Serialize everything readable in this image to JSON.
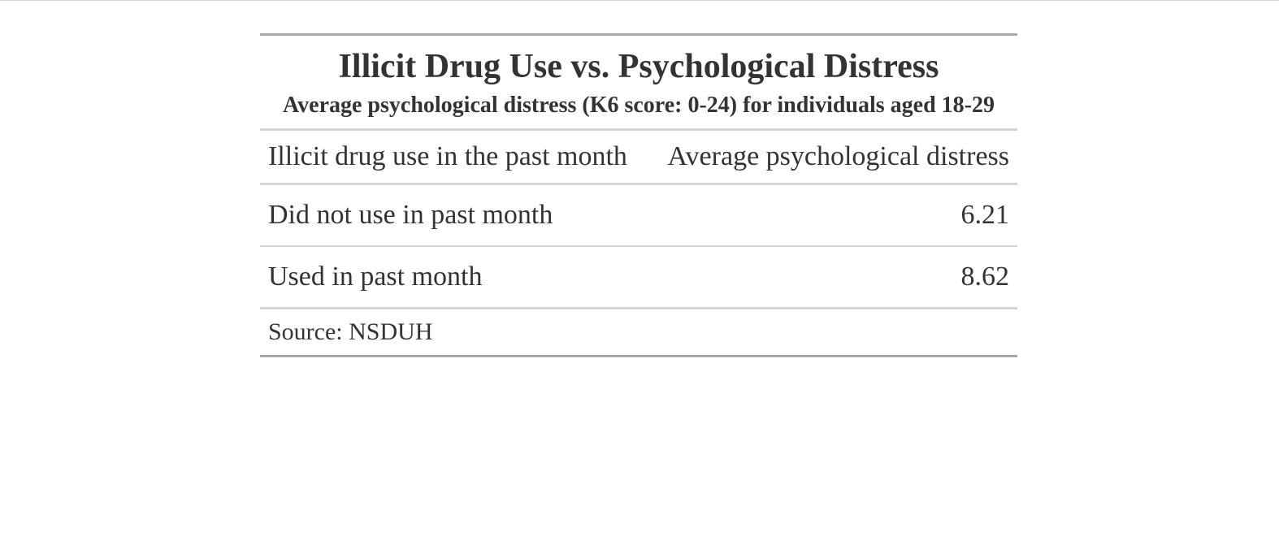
{
  "chart_data": {
    "type": "table",
    "title": "Illicit Drug Use vs. Psychological Distress",
    "subtitle": "Average psychological distress (K6 score: 0-24) for individuals aged 18-29",
    "columns": [
      "Illicit drug use in the past month",
      "Average psychological distress"
    ],
    "rows": [
      {
        "label": "Did not use in past month",
        "value": "6.21"
      },
      {
        "label": "Used in past month",
        "value": "8.62"
      }
    ],
    "source_note": "Source: NSDUH"
  }
}
